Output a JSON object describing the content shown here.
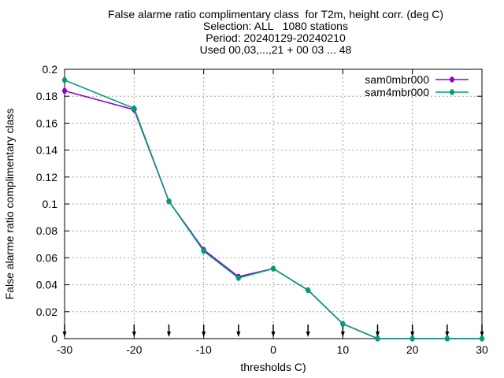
{
  "chart_data": {
    "type": "line",
    "title_lines": [
      "False alarme ratio complimentary class  for T2m, height corr. (deg C)",
      "Selection: ALL   1080 stations",
      "Period: 20240129-20240210",
      "Used 00,03,...,21 + 00 03 ... 48"
    ],
    "xlabel": "thresholds C)",
    "ylabel": "False alarme ratio complimentary class",
    "xlim": [
      -30,
      30
    ],
    "ylim": [
      0,
      0.2
    ],
    "xticks": [
      -30,
      -20,
      -10,
      0,
      10,
      20,
      30
    ],
    "yticks": [
      0,
      0.02,
      0.04,
      0.06,
      0.08,
      0.1,
      0.12,
      0.14,
      0.16,
      0.18,
      0.2
    ],
    "grid": true,
    "legend_position": "top-right",
    "arrow_markers_x": [
      -30,
      -20,
      -15,
      -10,
      -5,
      0,
      5,
      10,
      15,
      20,
      25,
      30
    ],
    "series": [
      {
        "name": "sam0mbr000",
        "color": "#9400d3",
        "x": [
          -30,
          -20,
          -15,
          -10,
          -5,
          0,
          5,
          10,
          15,
          20,
          25,
          30
        ],
        "values": [
          0.184,
          0.17,
          0.102,
          0.066,
          0.046,
          0.052,
          0.036,
          0.011,
          0.0,
          0.0,
          0.0,
          0.0
        ]
      },
      {
        "name": "sam4mbr000",
        "color": "#009e73",
        "x": [
          -30,
          -20,
          -15,
          -10,
          -5,
          0,
          5,
          10,
          15,
          20,
          25,
          30
        ],
        "values": [
          0.192,
          0.171,
          0.102,
          0.065,
          0.045,
          0.052,
          0.036,
          0.011,
          0.0,
          0.0,
          0.0,
          0.0
        ]
      }
    ]
  }
}
